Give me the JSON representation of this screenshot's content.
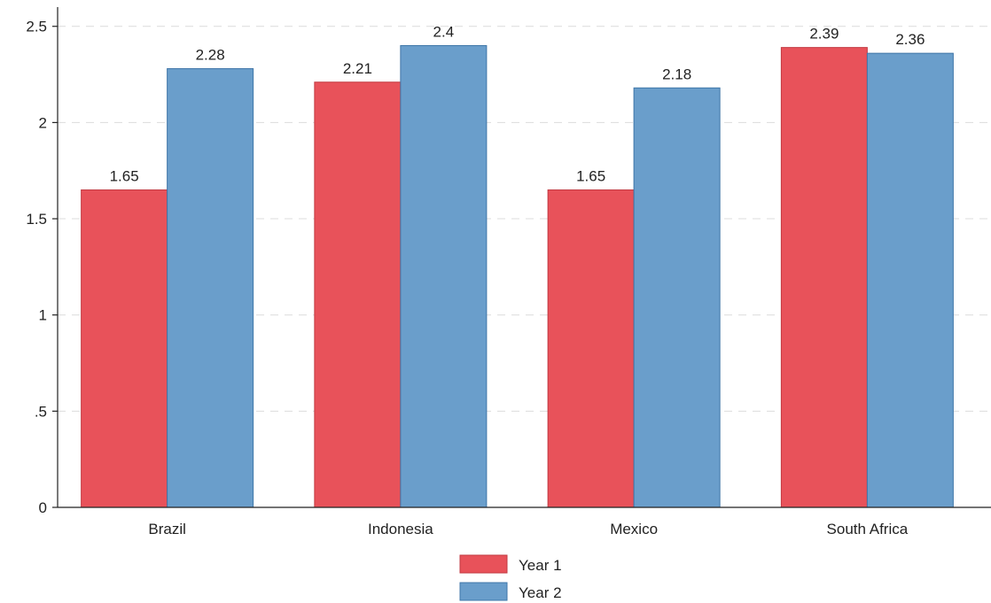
{
  "chart_data": {
    "type": "bar",
    "categories": [
      "Brazil",
      "Indonesia",
      "Mexico",
      "South Africa"
    ],
    "series": [
      {
        "name": "Year 1",
        "color": "#e8525a",
        "stroke": "#c23a42",
        "values": [
          1.65,
          2.21,
          1.65,
          2.39
        ],
        "labels": [
          "1.65",
          "2.21",
          "1.65",
          "2.39"
        ]
      },
      {
        "name": "Year 2",
        "color": "#6a9ecb",
        "stroke": "#3f76a8",
        "values": [
          2.28,
          2.4,
          2.18,
          2.36
        ],
        "labels": [
          "2.28",
          "2.4",
          "2.18",
          "2.36"
        ]
      }
    ],
    "title": "",
    "xlabel": "",
    "ylabel": "",
    "ylim": [
      0,
      2.6
    ],
    "yticks": [
      0,
      0.5,
      1,
      1.5,
      2,
      2.5
    ],
    "ytick_labels": [
      "0",
      ".5",
      "1",
      "1.5",
      "2",
      "2.5"
    ],
    "grid": true,
    "legend_position": "bottom"
  }
}
